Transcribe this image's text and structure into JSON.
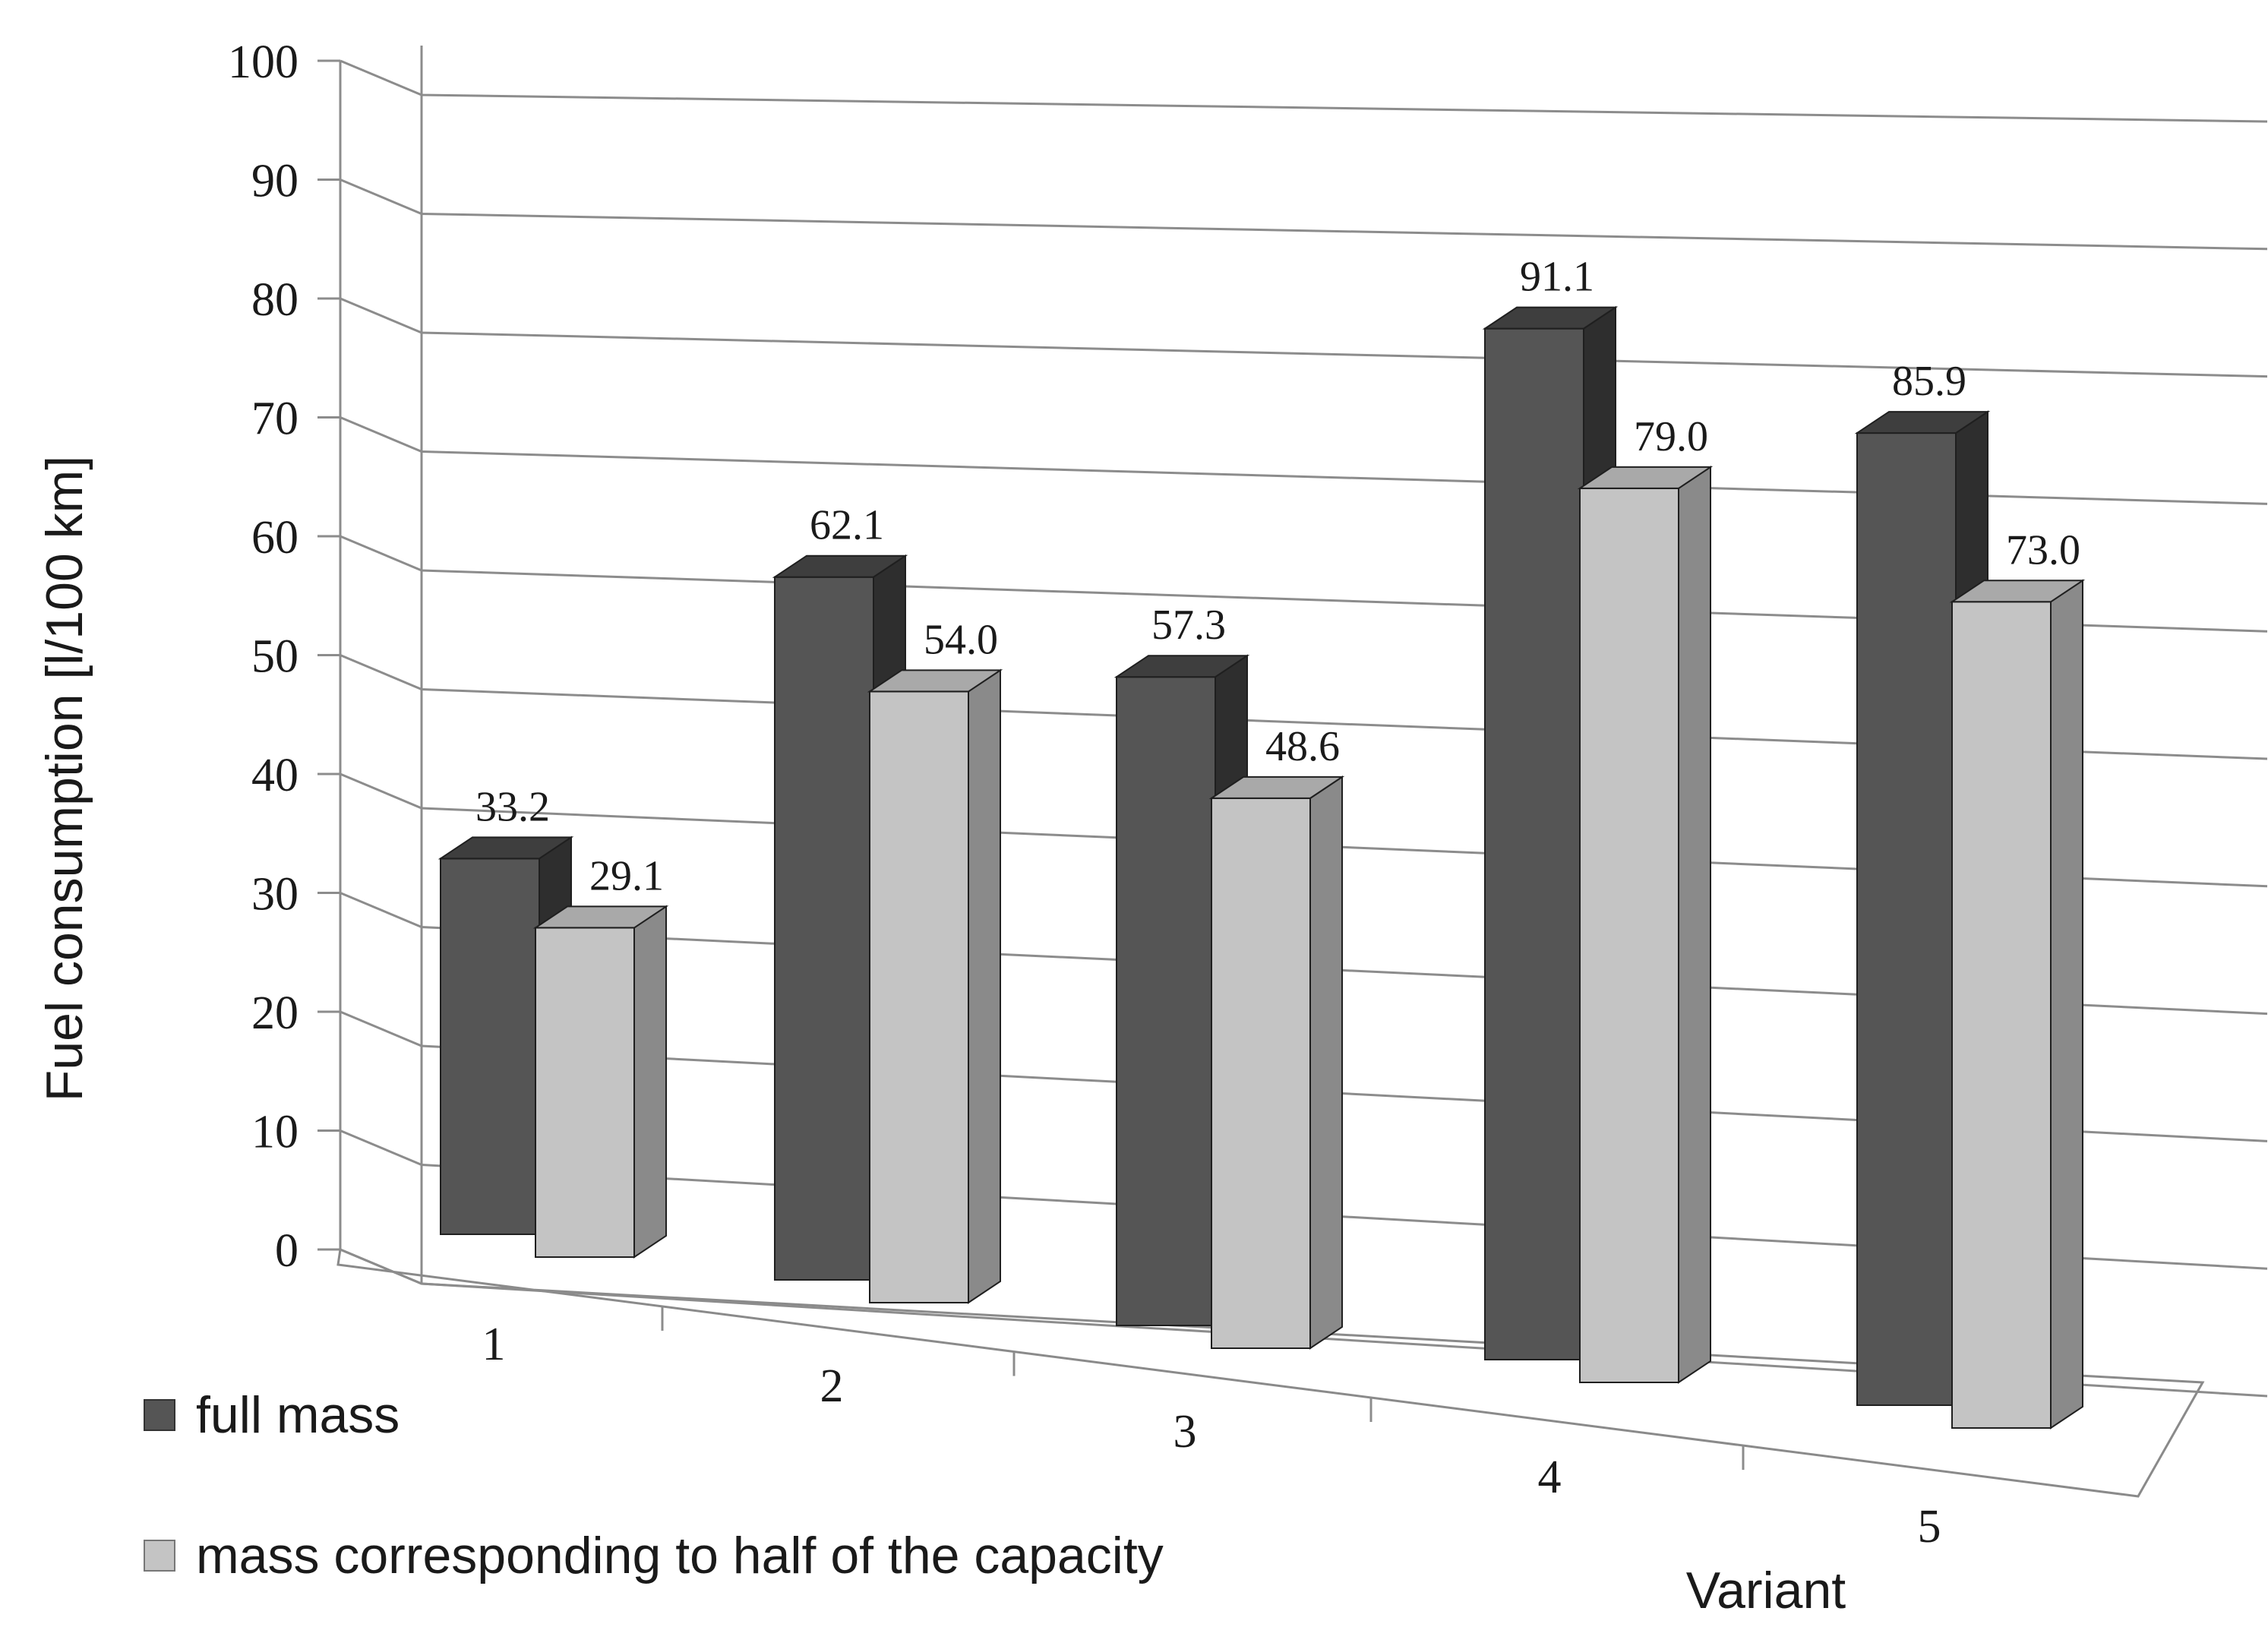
{
  "chart_data": {
    "type": "bar",
    "title": "",
    "xlabel": "Variant",
    "ylabel": "Fuel consumption [l/100 km]",
    "categories": [
      "1",
      "2",
      "3",
      "4",
      "5"
    ],
    "series": [
      {
        "name": "full mass",
        "values": [
          33.2,
          62.1,
          57.3,
          91.1,
          85.9
        ],
        "labels": [
          "33.2",
          "62.1",
          "57.3",
          "91.1",
          "85.9"
        ],
        "color": "#555555",
        "side": "#2e2e2e",
        "top": "#3e3e3e"
      },
      {
        "name": "mass corresponding to half of the capacity",
        "values": [
          29.1,
          54.0,
          48.6,
          79.0,
          73.0
        ],
        "labels": [
          "29.1",
          "54.0",
          "48.6",
          "79.0",
          "73.0"
        ],
        "color": "#c4c4c4",
        "side": "#8a8a8a",
        "top": "#a9a9a9"
      }
    ],
    "ylim": [
      0,
      100
    ],
    "yticks": [
      "0",
      "10",
      "20",
      "30",
      "40",
      "50",
      "60",
      "70",
      "80",
      "90",
      "100"
    ],
    "grid": true,
    "legend": "bottom-left"
  }
}
